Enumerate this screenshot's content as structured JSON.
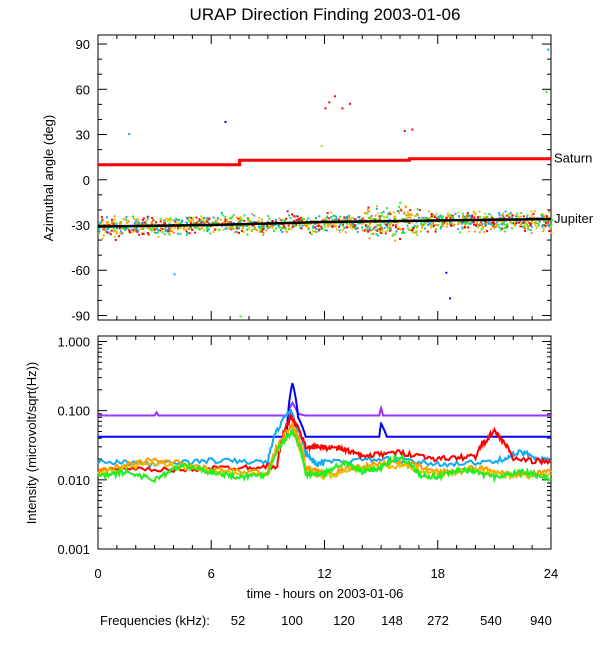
{
  "chart_data": {
    "title": "URAP Direction Finding  2003-01-06",
    "xlabel": "time - hours on 2003-01-06",
    "xlim": [
      0,
      24
    ],
    "xticks": [
      0,
      6,
      12,
      18,
      24
    ],
    "legend": {
      "label": "Frequencies (kHz):",
      "entries": [
        {
          "name": "52",
          "color": "#ff0000"
        },
        {
          "name": "100",
          "color": "#ff9900"
        },
        {
          "name": "120",
          "color": "#e6c000"
        },
        {
          "name": "148",
          "color": "#22ee22"
        },
        {
          "name": "272",
          "color": "#11aaee"
        },
        {
          "name": "540",
          "color": "#0000ff"
        },
        {
          "name": "940",
          "color": "#9933ff"
        }
      ]
    },
    "panels": [
      {
        "type": "scatter",
        "ylabel": "Azimuthal angle (deg)",
        "ylim": [
          -93,
          96
        ],
        "yticks": [
          90,
          60,
          30,
          0,
          -30,
          -60,
          -90
        ],
        "annotations": [
          {
            "text": "Saturn",
            "y": 14
          },
          {
            "text": "Jupiter",
            "y": -26
          }
        ],
        "series": [
          {
            "name": "Saturn",
            "color": "#ff0000",
            "x": [
              0,
              7.5,
              7.5,
              16.5,
              16.5,
              24
            ],
            "y": [
              10,
              10,
              13,
              13,
              14,
              14
            ]
          },
          {
            "name": "Jupiter",
            "color": "#000000",
            "x": [
              0,
              6,
              12,
              18,
              24
            ],
            "y": [
              -31,
              -30,
              -28,
              -27,
              -26
            ]
          }
        ],
        "scatter_base": [
          -31,
          -30,
          -29,
          -29,
          -28,
          -28,
          -27,
          -27,
          -27
        ],
        "outliers": [
          {
            "x": 12.2,
            "y": 52,
            "color": "#ff0000"
          },
          {
            "x": 12.5,
            "y": 56,
            "color": "#ff0000"
          },
          {
            "x": 12.9,
            "y": 48,
            "color": "#ff0000"
          },
          {
            "x": 13.3,
            "y": 51,
            "color": "#ff0000"
          },
          {
            "x": 12.0,
            "y": 48,
            "color": "#ff0000"
          },
          {
            "x": 16.2,
            "y": 33,
            "color": "#ff0000"
          },
          {
            "x": 16.6,
            "y": 34,
            "color": "#ff0000"
          },
          {
            "x": 6.7,
            "y": 39,
            "color": "#0000ff"
          },
          {
            "x": 1.6,
            "y": 31,
            "color": "#11aaee"
          },
          {
            "x": 23.8,
            "y": 87,
            "color": "#11aaee"
          },
          {
            "x": 23.7,
            "y": 59,
            "color": "#22ee22"
          },
          {
            "x": 18.6,
            "y": -78,
            "color": "#0000ff"
          },
          {
            "x": 18.4,
            "y": -61,
            "color": "#0000ff"
          },
          {
            "x": 7.5,
            "y": -90,
            "color": "#22ee22"
          },
          {
            "x": 4.0,
            "y": -62,
            "color": "#11aaee"
          },
          {
            "x": 11.8,
            "y": 23,
            "color": "#e6c000"
          }
        ]
      },
      {
        "type": "line",
        "ylabel": "Intensity (microvolt/sqrt(Hz))",
        "ylim": [
          0.001,
          1.2
        ],
        "yscale": "log",
        "yticks": [
          1.0,
          0.1,
          0.01,
          0.001
        ],
        "ytick_labels": [
          "1.000",
          "0.100",
          "0.010",
          "0.001"
        ],
        "series": [
          {
            "name": "940",
            "color": "#9933ff",
            "x": [
              0,
              3,
              3.1,
              3.2,
              10,
              10.3,
              10.6,
              11,
              14.9,
              15,
              15.1,
              24
            ],
            "y": [
              0.085,
              0.085,
              0.095,
              0.085,
              0.085,
              0.13,
              0.09,
              0.085,
              0.085,
              0.11,
              0.085,
              0.085
            ]
          },
          {
            "name": "540",
            "color": "#0000ff",
            "x": [
              0,
              10,
              10.3,
              10.6,
              11,
              14.9,
              15,
              15.3,
              24
            ],
            "y": [
              0.042,
              0.042,
              0.25,
              0.08,
              0.042,
              0.042,
              0.065,
              0.042,
              0.042
            ]
          },
          {
            "name": "272",
            "color": "#11aaee",
            "x": [
              0,
              3,
              6,
              9,
              10.2,
              10.5,
              11,
              11.5,
              12,
              15,
              18,
              21,
              22.4,
              24
            ],
            "y": [
              0.018,
              0.017,
              0.019,
              0.018,
              0.1,
              0.06,
              0.025,
              0.017,
              0.018,
              0.02,
              0.017,
              0.018,
              0.025,
              0.018
            ]
          },
          {
            "name": "52",
            "color": "#ff0000",
            "x": [
              0,
              4,
              7,
              9.5,
              10.2,
              11,
              12,
              13,
              14,
              16,
              18,
              20,
              21,
              22,
              24
            ],
            "y": [
              0.014,
              0.014,
              0.015,
              0.016,
              0.08,
              0.03,
              0.03,
              0.028,
              0.022,
              0.025,
              0.02,
              0.022,
              0.05,
              0.02,
              0.018
            ]
          },
          {
            "name": "100",
            "color": "#ff9900",
            "x": [
              0,
              3,
              6,
              9,
              10.3,
              11,
              12,
              14,
              16,
              18,
              20,
              22,
              24
            ],
            "y": [
              0.013,
              0.02,
              0.014,
              0.013,
              0.06,
              0.015,
              0.012,
              0.016,
              0.018,
              0.013,
              0.015,
              0.012,
              0.013
            ]
          },
          {
            "name": "120",
            "color": "#e6c000",
            "x": [
              0,
              3,
              6,
              9,
              10.3,
              11,
              12,
              14,
              16,
              18,
              20,
              22,
              24
            ],
            "y": [
              0.012,
              0.018,
              0.013,
              0.012,
              0.05,
              0.013,
              0.011,
              0.015,
              0.016,
              0.012,
              0.014,
              0.011,
              0.012
            ]
          },
          {
            "name": "148",
            "color": "#22ee22",
            "x": [
              0,
              1.5,
              3,
              4.5,
              6,
              7.5,
              9,
              10.3,
              11,
              12,
              13,
              14,
              15,
              16,
              17,
              18,
              19.5,
              21,
              22.5,
              24
            ],
            "y": [
              0.011,
              0.013,
              0.01,
              0.016,
              0.013,
              0.011,
              0.012,
              0.05,
              0.012,
              0.012,
              0.018,
              0.013,
              0.015,
              0.022,
              0.012,
              0.011,
              0.014,
              0.011,
              0.013,
              0.01
            ]
          }
        ]
      }
    ]
  }
}
